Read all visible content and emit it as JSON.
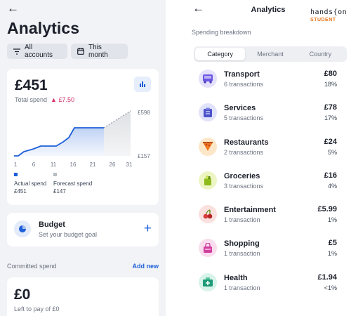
{
  "left": {
    "back_icon": "arrow-left-icon",
    "title": "Analytics",
    "filters": [
      {
        "label": "All accounts",
        "icon": "filter-icon"
      },
      {
        "label": "This month",
        "icon": "calendar-icon"
      }
    ],
    "spend": {
      "amount": "£451",
      "label": "Total spend",
      "delta": "▲ £7.50",
      "chart_icon": "bar-chart-icon",
      "y_max_label": "£598",
      "y_min_label": "£157",
      "x_ticks": [
        "1",
        "6",
        "11",
        "16",
        "21",
        "26",
        "31"
      ],
      "legend": [
        {
          "label": "Actual spend",
          "value": "£451",
          "color": "#1d5fd8"
        },
        {
          "label": "Forecast spend",
          "value": "£147",
          "color": "#b8bcc4"
        }
      ]
    },
    "budget": {
      "title": "Budget",
      "subtitle": "Set your budget goal",
      "icon": "pie-chart-icon",
      "add_icon": "plus-icon"
    },
    "committed": {
      "label": "Committed spend",
      "action": "Add new"
    },
    "left_to_pay": {
      "amount": "£0",
      "subtitle": "Left to pay of £0"
    }
  },
  "right": {
    "back_icon": "arrow-left-icon",
    "title": "Analytics",
    "section_label": "Spending breakdown",
    "tabs": [
      {
        "label": "Category",
        "active": true
      },
      {
        "label": "Merchant",
        "active": false
      },
      {
        "label": "Country",
        "active": false
      }
    ],
    "categories": [
      {
        "name": "Transport",
        "count": "6 transactions",
        "amount": "£80",
        "pct": "18%",
        "icon": "bus-icon",
        "bg": "#e4e1fb",
        "fg": "#6a57e0"
      },
      {
        "name": "Services",
        "count": "5 transactions",
        "amount": "£78",
        "pct": "17%",
        "icon": "services-icon",
        "bg": "#e1e3fa",
        "fg": "#4b52c9"
      },
      {
        "name": "Restaurants",
        "count": "2 transactions",
        "amount": "£24",
        "pct": "5%",
        "icon": "pizza-icon",
        "bg": "#fde7c9",
        "fg": "#ef7a23"
      },
      {
        "name": "Groceries",
        "count": "3 transactions",
        "amount": "£16",
        "pct": "4%",
        "icon": "groceries-icon",
        "bg": "#eef5c4",
        "fg": "#8dbb1a"
      },
      {
        "name": "Entertainment",
        "count": "1 transaction",
        "amount": "£5.99",
        "pct": "1%",
        "icon": "cherries-icon",
        "bg": "#fbe0e0",
        "fg": "#d93a3a"
      },
      {
        "name": "Shopping",
        "count": "1 transaction",
        "amount": "£5",
        "pct": "1%",
        "icon": "shopping-bag-icon",
        "bg": "#fadcef",
        "fg": "#d03fa0"
      },
      {
        "name": "Health",
        "count": "1 transaction",
        "amount": "£1.94",
        "pct": "<1%",
        "icon": "health-icon",
        "bg": "#d8f3ea",
        "fg": "#1d9a78"
      }
    ]
  },
  "watermark": {
    "line1": "hands{on",
    "line2": "STUDENT"
  }
}
